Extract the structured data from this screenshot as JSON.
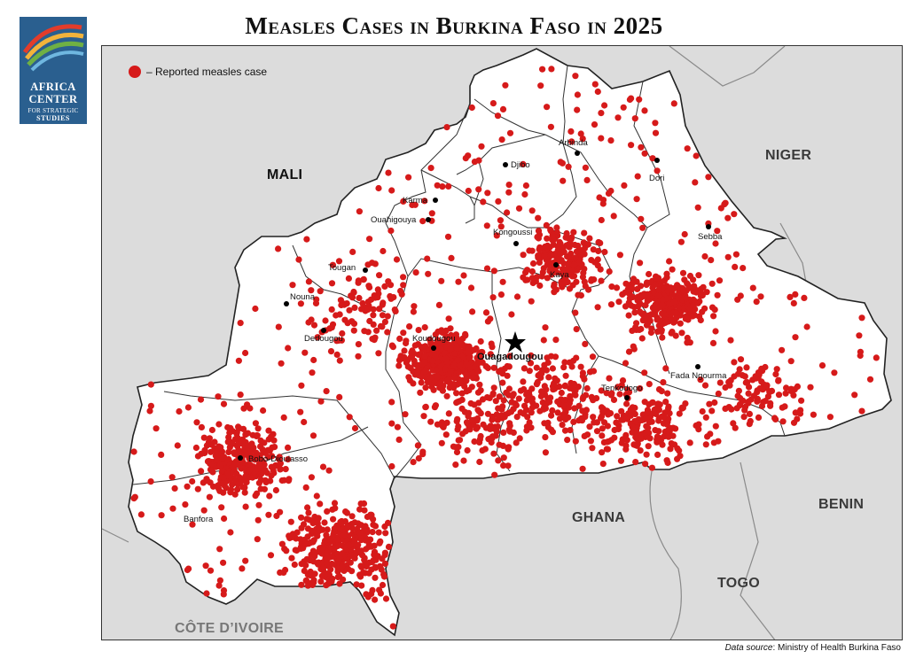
{
  "title": "Measles Cases in Burkina Faso in 2025",
  "logo": {
    "line1": "AFRICA",
    "line2": "CENTER",
    "line3": "FOR STRATEGIC",
    "line4": "STUDIES"
  },
  "legend": {
    "label": "– Reported measles case",
    "marker_color": "#d61a1a"
  },
  "countries": {
    "mali": "MALI",
    "niger": "NIGER",
    "benin": "BENIN",
    "ghana": "GHANA",
    "togo": "TOGO",
    "cote_divoire": "CÔTE D’IVOIRE"
  },
  "cities": {
    "arbinda": "Arbinda",
    "djibo": "Djibo",
    "dori": "Dori",
    "karma": "Karma",
    "ouahigouya": "Ouahigouya",
    "kongoussi": "Kongoussi",
    "sebba": "Sebba",
    "tougan": "Tougan",
    "kaya": "Kaya",
    "nouna": "Nouna",
    "dedougou": "Dedougou",
    "koudougou": "Koudougou",
    "ouagadougou": "Ouagadougou",
    "fada": "Fada Ngourma",
    "tenkodogo": "Tenkodogo",
    "bobo": "Bobo-Dioulasso",
    "banfora": "Banfora"
  },
  "source": {
    "label": "Data source",
    "text": ": Ministry of Health Burkina Faso"
  },
  "colors": {
    "case_dot": "#d61a1a",
    "burkina_fill": "#ffffff",
    "neighbor_fill": "#dcdcdc"
  }
}
